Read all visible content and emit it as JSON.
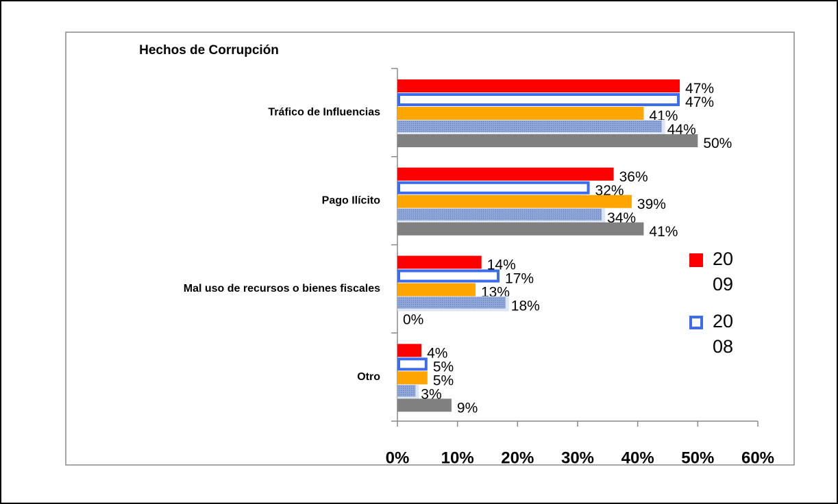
{
  "chart_data": {
    "type": "bar",
    "orientation": "horizontal",
    "title": "Hechos de Corrupción",
    "categories": [
      "Tráfico de Influencias",
      "Pago Ilícito",
      "Mal uso de recursos o bienes fiscales",
      "Otro"
    ],
    "series": [
      {
        "name": "2009",
        "color": "#ff0000",
        "values": [
          47,
          36,
          14,
          4
        ],
        "value_labels": [
          "47%",
          "36%",
          "14%",
          "4%"
        ]
      },
      {
        "name": "2008",
        "color": "#3b6cf0",
        "fill": "#ffffff",
        "values": [
          47,
          32,
          17,
          5
        ],
        "value_labels": [
          "47%",
          "32%",
          "17%",
          "5%"
        ]
      },
      {
        "color": "#ffa500",
        "values": [
          41,
          39,
          13,
          5
        ],
        "value_labels": [
          "41%",
          "39%",
          "13%",
          "5%"
        ]
      },
      {
        "color": "#8ea6d8",
        "values": [
          44,
          34,
          18,
          3
        ],
        "value_labels": [
          "44%",
          "34%",
          "18%",
          "3%"
        ]
      },
      {
        "color": "#808080",
        "values": [
          50,
          41,
          0,
          9
        ],
        "value_labels": [
          "50%",
          "41%",
          "0%",
          "9%"
        ]
      }
    ],
    "xlim": [
      0,
      60
    ],
    "xticks": [
      {
        "value": 0,
        "label": "0%"
      },
      {
        "value": 10,
        "label": "10%"
      },
      {
        "value": 20,
        "label": "20%"
      },
      {
        "value": 30,
        "label": "30%"
      },
      {
        "value": 40,
        "label": "40%"
      },
      {
        "value": 50,
        "label": "50%"
      },
      {
        "value": 60,
        "label": "60%"
      }
    ],
    "legend": "right"
  }
}
